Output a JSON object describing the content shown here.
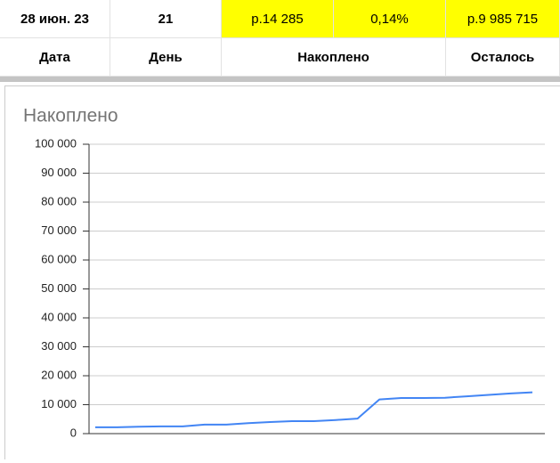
{
  "sheet": {
    "rows": [
      [
        "28 июн. 23",
        "21",
        "р.14 285",
        "0,14%",
        "р.9 985 715"
      ],
      [
        "Дата",
        "День",
        "Накоплено",
        "Осталось"
      ]
    ]
  },
  "chart_data": {
    "type": "line",
    "title": "Накоплено",
    "categories": [
      null,
      null,
      null,
      null,
      null,
      null,
      null,
      null,
      null,
      null,
      null,
      null,
      null,
      null,
      null,
      null,
      null,
      null,
      null,
      null,
      null
    ],
    "values": [
      2200,
      2200,
      2400,
      2500,
      2500,
      3100,
      3100,
      3600,
      4000,
      4300,
      4300,
      4700,
      5200,
      11800,
      12300,
      12300,
      12400,
      12900,
      13400,
      13900,
      14285
    ],
    "color": "#4285f4",
    "ylim": [
      0,
      100000
    ],
    "yticks": [
      0,
      {
        "value": 10000,
        "label": "10 000"
      },
      {
        "value": 20000,
        "label": "20 000"
      },
      {
        "value": 30000,
        "label": "30 000"
      },
      {
        "value": 40000,
        "label": "40 000"
      },
      {
        "value": 50000,
        "label": "50 000"
      },
      {
        "value": 60000,
        "label": "60 000"
      },
      {
        "value": 70000,
        "label": "70 000"
      },
      {
        "value": 80000,
        "label": "80 000"
      },
      {
        "value": 90000,
        "label": "90 000"
      },
      {
        "value": 100000,
        "label": "100 000"
      }
    ],
    "grid": true
  }
}
